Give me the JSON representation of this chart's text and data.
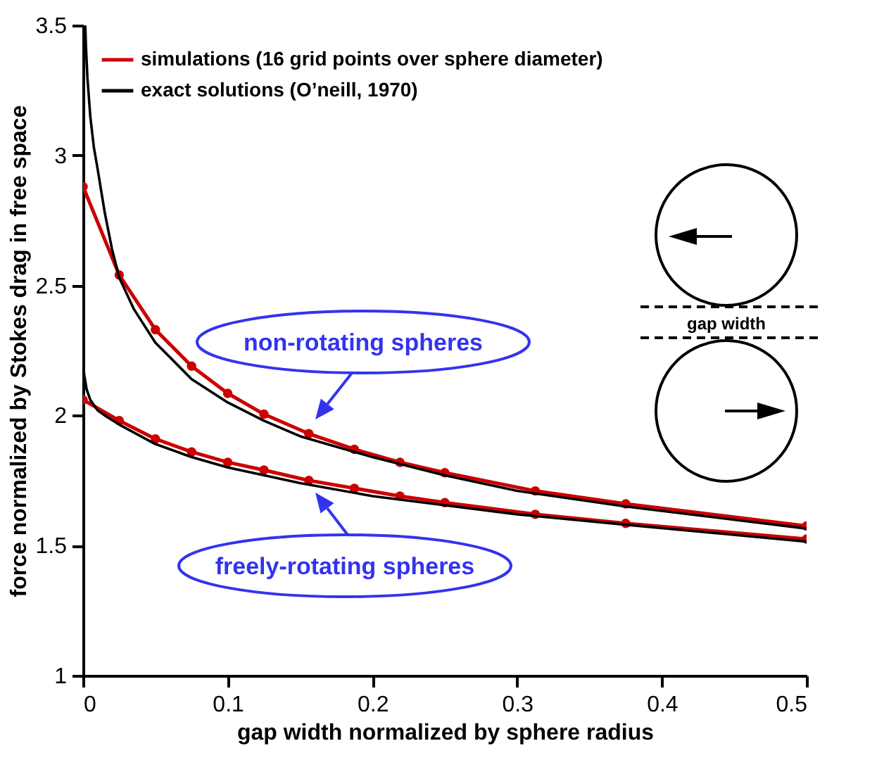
{
  "chart_data": {
    "type": "line",
    "xlabel": "gap width normalized by sphere radius",
    "ylabel": "force normalized by Stokes drag in free space",
    "xlim": [
      0,
      0.5
    ],
    "ylim": [
      1,
      3.5
    ],
    "xticks": [
      0,
      0.1,
      0.2,
      0.3,
      0.4,
      0.5
    ],
    "yticks": [
      1,
      1.5,
      2,
      2.5,
      3,
      3.5
    ],
    "grid": false,
    "legend": "top left",
    "line_style": "solid",
    "series": [
      {
        "name": "simulations (16 grid points over sphere diameter)",
        "color": "#cc0000",
        "marker": "circle",
        "x": [
          0,
          0.025,
          0.05,
          0.075,
          0.1,
          0.125,
          0.156,
          0.1875,
          0.219,
          0.25,
          0.3125,
          0.375,
          0.5
        ],
        "values": [
          2.88,
          2.54,
          2.33,
          2.19,
          2.085,
          2.005,
          1.93,
          1.87,
          1.82,
          1.78,
          1.71,
          1.66,
          1.575
        ]
      },
      {
        "color": "#cc0000",
        "marker": "circle",
        "x": [
          0,
          0.025,
          0.05,
          0.075,
          0.1,
          0.125,
          0.156,
          0.1875,
          0.219,
          0.25,
          0.3125,
          0.375,
          0.5
        ],
        "values": [
          2.06,
          1.98,
          1.91,
          1.86,
          1.82,
          1.79,
          1.75,
          1.72,
          1.69,
          1.665,
          1.62,
          1.585,
          1.525
        ]
      },
      {
        "name": "exact solutions (O’neill, 1970)",
        "color": "#000000",
        "marker": "none",
        "x": [
          0.0015,
          0.002,
          0.003,
          0.005,
          0.0075,
          0.01,
          0.015,
          0.02,
          0.025,
          0.035,
          0.05,
          0.075,
          0.1,
          0.125,
          0.15,
          0.2,
          0.25,
          0.3,
          0.375,
          0.5
        ],
        "values": [
          3.5,
          3.42,
          3.3,
          3.15,
          3.03,
          2.95,
          2.78,
          2.64,
          2.53,
          2.41,
          2.28,
          2.14,
          2.05,
          1.98,
          1.92,
          1.84,
          1.77,
          1.71,
          1.65,
          1.565
        ]
      },
      {
        "color": "#000000",
        "marker": "none",
        "x": [
          0,
          0.001,
          0.0025,
          0.005,
          0.01,
          0.015,
          0.025,
          0.05,
          0.075,
          0.1,
          0.15,
          0.2,
          0.25,
          0.3,
          0.375,
          0.5
        ],
        "values": [
          2.19,
          2.15,
          2.1,
          2.06,
          2.02,
          2.0,
          1.965,
          1.89,
          1.84,
          1.8,
          1.74,
          1.69,
          1.655,
          1.62,
          1.58,
          1.515
        ]
      }
    ],
    "annotations": [
      "non-rotating spheres",
      "freely-rotating spheres",
      "gap width"
    ]
  }
}
